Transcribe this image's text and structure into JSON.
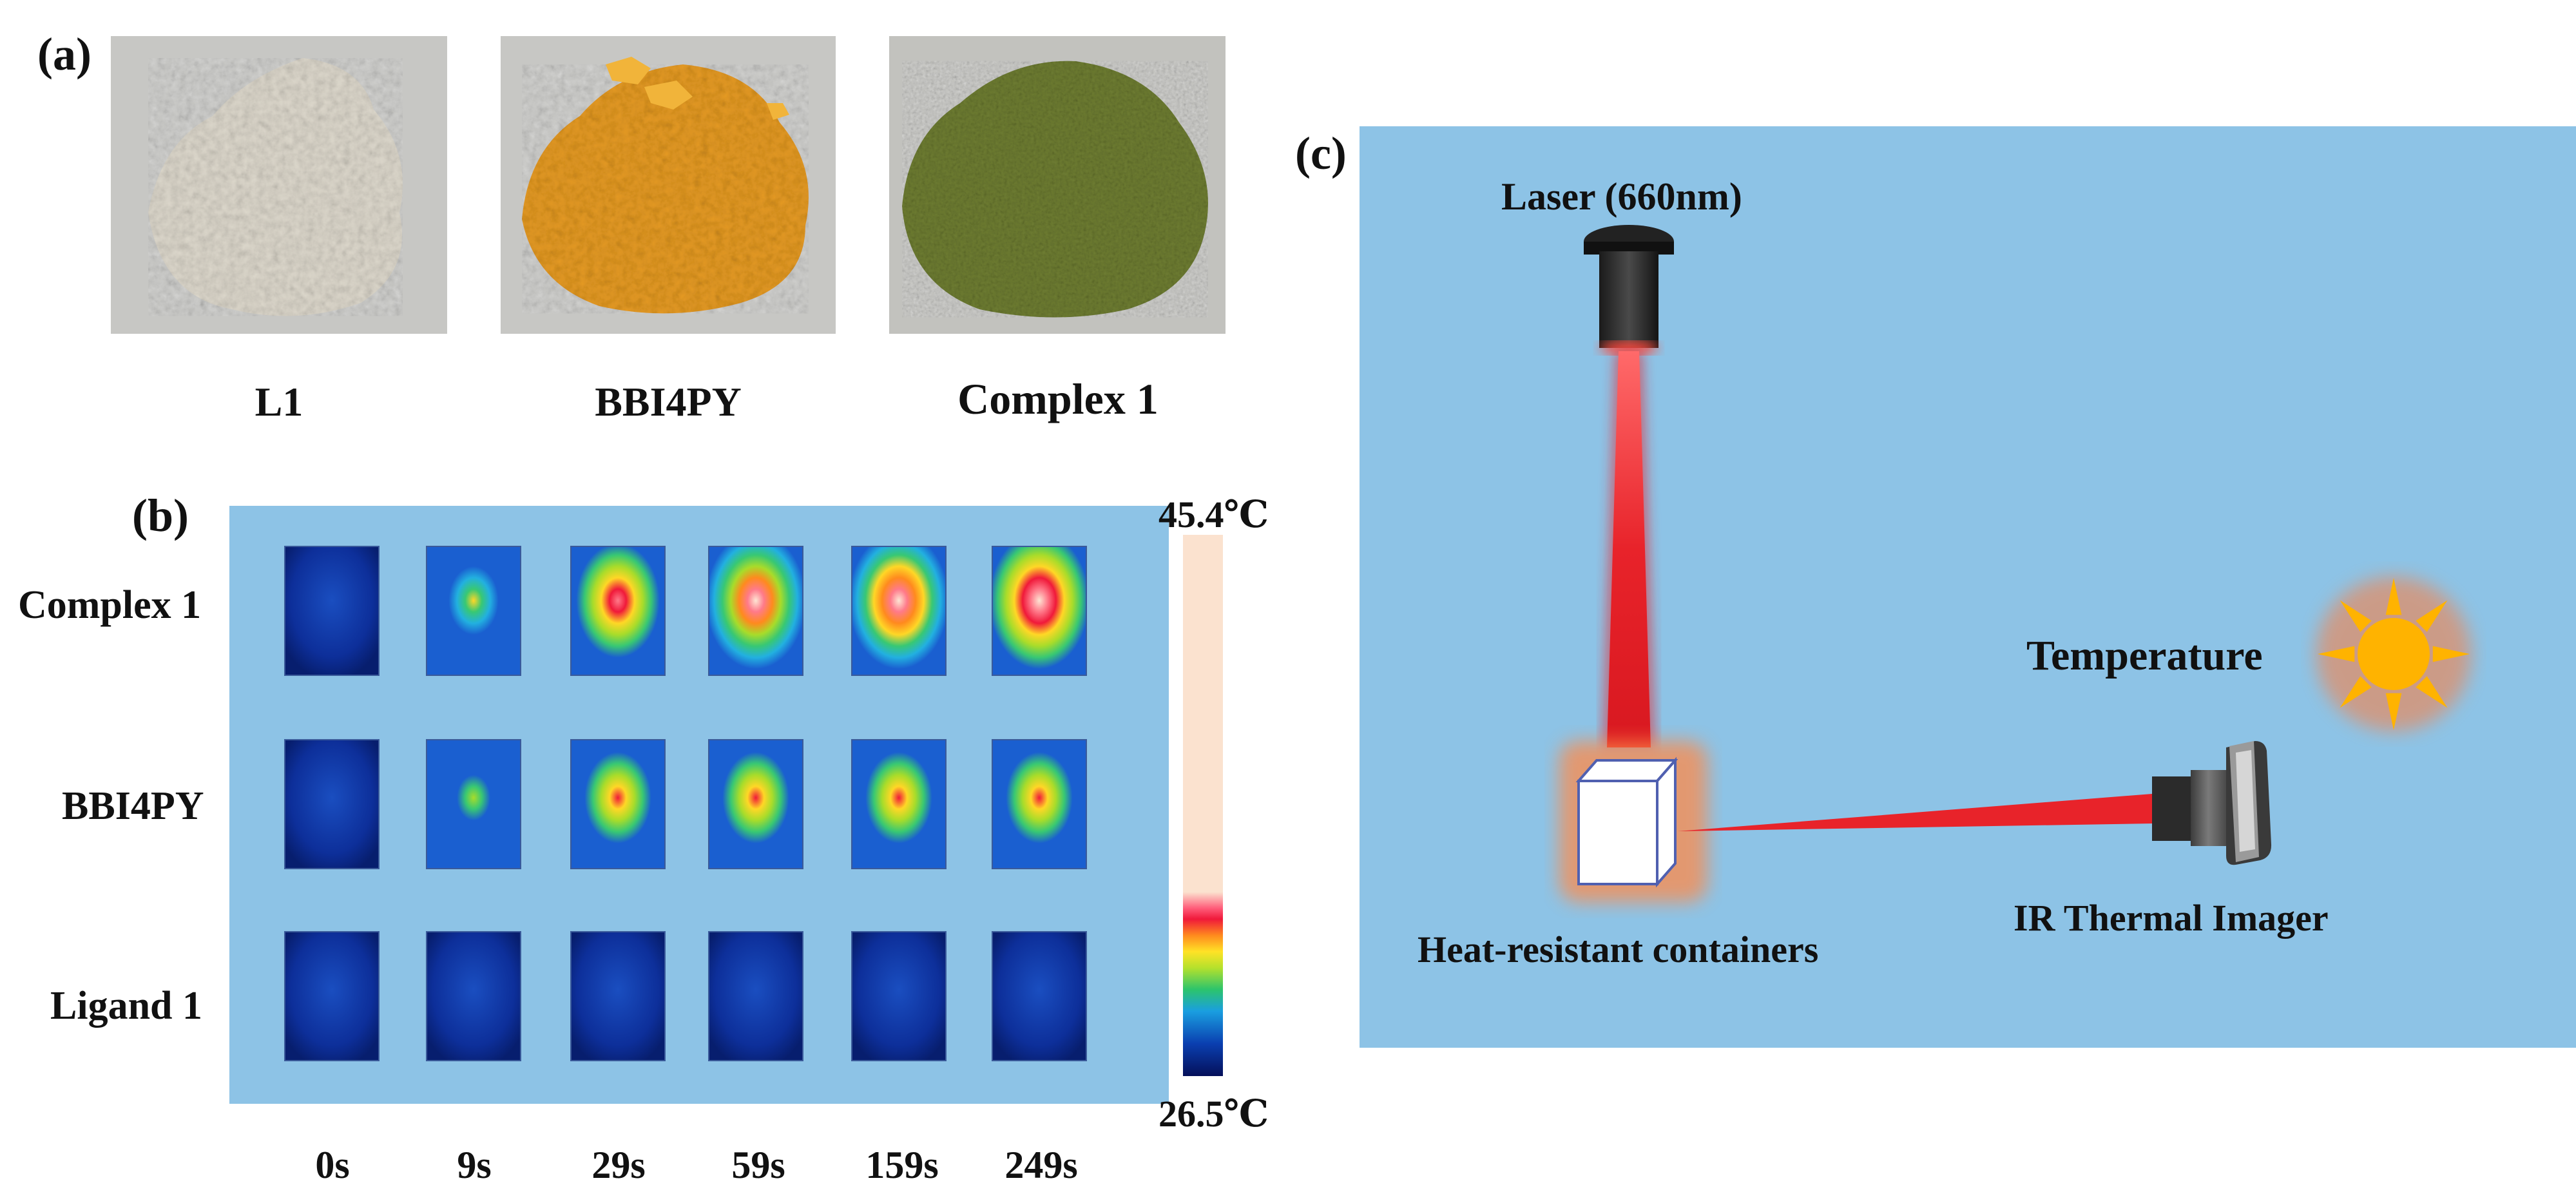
{
  "panel_a": {
    "letter": "(a)",
    "photos": [
      {
        "caption": "L1",
        "color": "#ddd8cc"
      },
      {
        "caption": "BBI4PY",
        "color": "#e59a22"
      },
      {
        "caption": "Complex 1",
        "color": "#6e7d32"
      }
    ]
  },
  "panel_b": {
    "letter": "(b)",
    "panel_bg": "#8dc3e6",
    "rows": [
      "Complex 1",
      "BBI4PY",
      "Ligand 1"
    ],
    "times": [
      "0s",
      "9s",
      "29s",
      "59s",
      "159s",
      "249s"
    ],
    "scale": {
      "max_label": "45.4℃",
      "min_label": "26.5℃",
      "max_c": 45.4,
      "min_c": 26.5
    },
    "heat_levels": [
      [
        0.0,
        0.55,
        0.85,
        0.92,
        0.95,
        0.98
      ],
      [
        0.0,
        0.45,
        0.72,
        0.72,
        0.72,
        0.72
      ],
      [
        0.0,
        0.0,
        0.0,
        0.0,
        0.0,
        0.0
      ]
    ]
  },
  "panel_c": {
    "letter": "(c)",
    "panel_bg": "#8dc3e6",
    "laser_label": "Laser (660nm)",
    "container_label": "Heat-resistant containers",
    "imager_label": "IR Thermal Imager",
    "temperature_label": "Temperature",
    "beam_color": "#e8232a",
    "sun_color": "#ffb300"
  }
}
